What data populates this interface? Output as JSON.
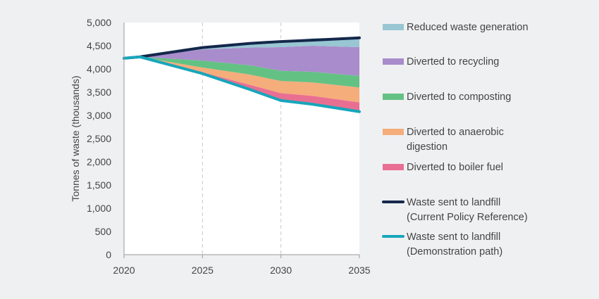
{
  "chart_data": {
    "type": "area",
    "xlabel": "",
    "ylabel": "Tonnes of waste (thousands)",
    "xlim": [
      2020,
      2035
    ],
    "ylim": [
      0,
      5000
    ],
    "x_ticks": [
      2020,
      2025,
      2030,
      2035
    ],
    "y_ticks": [
      0,
      500,
      1000,
      1500,
      2000,
      2500,
      3000,
      3500,
      4000,
      4500,
      5000
    ],
    "y_tick_labels": [
      "0",
      "500",
      "1,000",
      "1,500",
      "2,000",
      "2,500",
      "3,000",
      "3,500",
      "4,000",
      "4,500",
      "5,000"
    ],
    "grid": "vertical dashed at x ticks",
    "legend_position": "right",
    "x": [
      2020,
      2021,
      2025,
      2028,
      2030,
      2032,
      2035
    ],
    "lines": [
      {
        "name": "Waste sent to landfill (Current Policy Reference)",
        "legend_lines": [
          "Waste sent to landfill",
          "(Current Policy Reference)"
        ],
        "color": "#14284b",
        "values": [
          4230,
          4260,
          4460,
          4550,
          4590,
          4620,
          4670
        ]
      },
      {
        "name": "Waste sent to landfill (Demonstration path)",
        "legend_lines": [
          "Waste sent to landfill",
          "(Demonstration path)"
        ],
        "color": "#17a6bb",
        "values": [
          4230,
          4260,
          3900,
          3560,
          3320,
          3240,
          3080
        ]
      }
    ],
    "stacked_areas": [
      {
        "name": "Diverted to boiler fuel",
        "legend_lines": [
          "Diverted to boiler fuel"
        ],
        "color": "#e96f92",
        "values": [
          0,
          0,
          30,
          100,
          160,
          180,
          200
        ]
      },
      {
        "name": "Diverted to anaerobic digestion",
        "legend_lines": [
          "Diverted to anaerobic",
          "digestion"
        ],
        "color": "#f5ad7b",
        "values": [
          0,
          0,
          100,
          220,
          260,
          290,
          320
        ]
      },
      {
        "name": "Diverted to composting",
        "legend_lines": [
          "Diverted to composting"
        ],
        "color": "#64c184",
        "values": [
          0,
          0,
          150,
          200,
          220,
          230,
          250
        ]
      },
      {
        "name": "Diverted to recycling",
        "legend_lines": [
          "Diverted to recycling"
        ],
        "color": "#a98ccb",
        "values": [
          0,
          0,
          240,
          380,
          510,
          560,
          620
        ]
      },
      {
        "name": "Reduced waste generation",
        "legend_lines": [
          "Reduced waste generation"
        ],
        "color": "#98c6d3",
        "values": [
          0,
          0,
          40,
          90,
          120,
          160,
          200
        ]
      }
    ],
    "legend_order": [
      "Reduced waste generation",
      "Diverted to recycling",
      "Diverted to composting",
      "Diverted to anaerobic digestion",
      "Diverted to boiler fuel",
      "Waste sent to landfill (Current Policy Reference)",
      "Waste sent to landfill (Demonstration path)"
    ]
  },
  "colors": {
    "background": "#eff0f2",
    "plot_background": "#ffffff",
    "grid": "#c8c8c8",
    "axis": "#9a9a9a"
  }
}
